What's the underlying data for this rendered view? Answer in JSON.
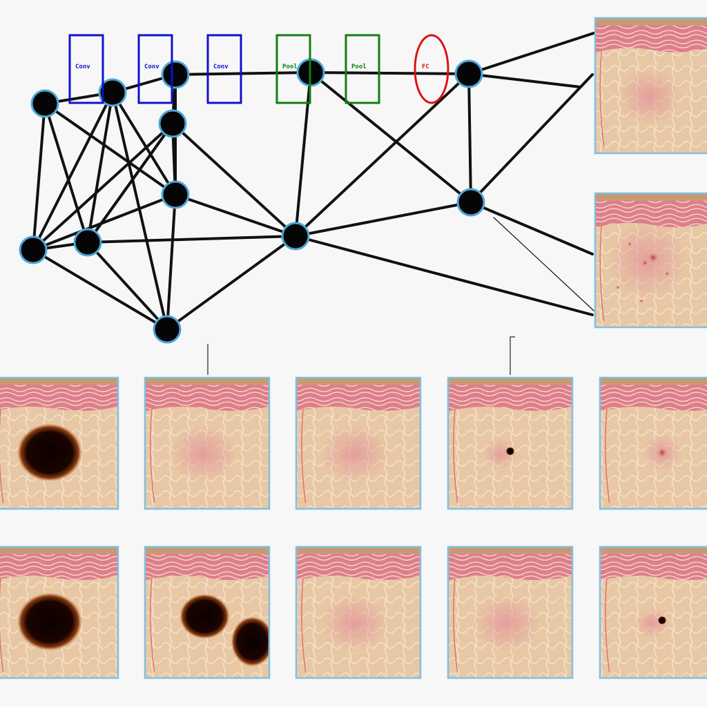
{
  "diagram": {
    "layer_labels": [
      {
        "id": "conv1",
        "text": "Conv",
        "color": "#1010d0",
        "shape": "rect"
      },
      {
        "id": "conv2",
        "text": "Conv",
        "color": "#1010d0",
        "shape": "rect"
      },
      {
        "id": "conv3",
        "text": "Conv",
        "color": "#1010d0",
        "shape": "rect"
      },
      {
        "id": "pool1",
        "text": "Pool",
        "color": "#108010",
        "shape": "rect"
      },
      {
        "id": "pool2",
        "text": "Pool",
        "color": "#108010",
        "shape": "rect"
      },
      {
        "id": "fc",
        "text": "FC",
        "color": "#e01010",
        "shape": "ellipse"
      }
    ],
    "node_count": 13,
    "edge_color": "#111111",
    "node_fill": "#050505",
    "node_ring": "#4aa8d8"
  },
  "skin_samples": {
    "side_panels": [
      {
        "lesion": "faint-red"
      },
      {
        "lesion": "scattered-red"
      }
    ],
    "grid_row_1": [
      {
        "lesion": "large-dark"
      },
      {
        "lesion": "faint-red"
      },
      {
        "lesion": "faint-red"
      },
      {
        "lesion": "small-dark"
      },
      {
        "lesion": "small-red"
      }
    ],
    "grid_row_2": [
      {
        "lesion": "large-dark"
      },
      {
        "lesion": "double-dark"
      },
      {
        "lesion": "faint-red"
      },
      {
        "lesion": "faint-red"
      },
      {
        "lesion": "small-dark"
      }
    ],
    "frame_color": "#7fc0e0",
    "skin_color": "#e6c3a0",
    "tissue_color": "#e38a92"
  }
}
